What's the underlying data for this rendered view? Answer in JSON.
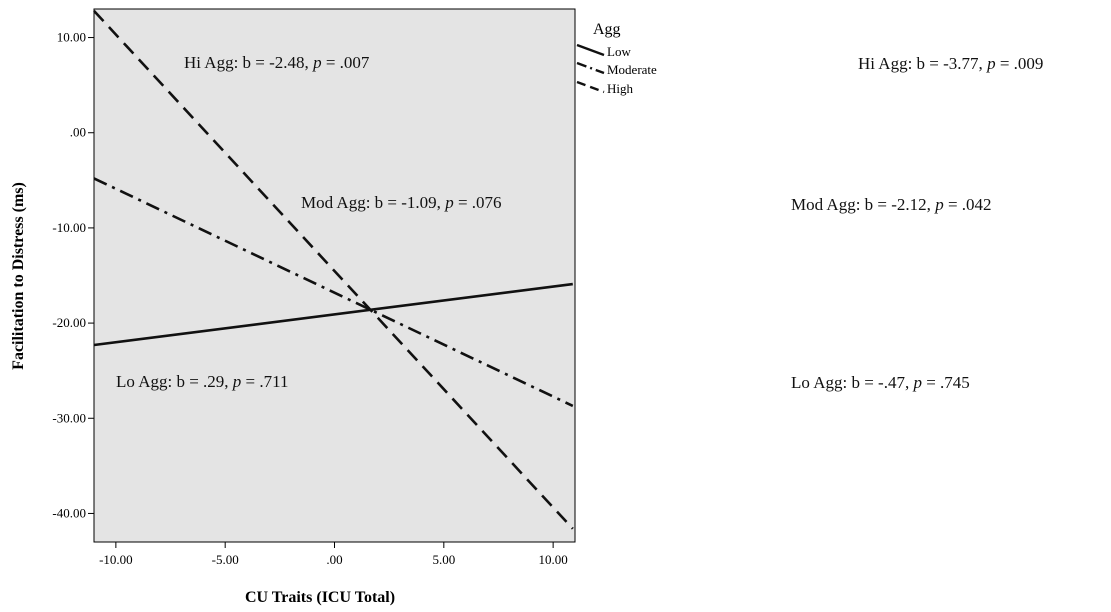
{
  "chart_data": {
    "type": "line",
    "xlabel": "CU Traits (ICU Total)",
    "ylabel": "Facilitation to Distress (ms)",
    "xlim": [
      -11.0,
      11.0
    ],
    "ylim": [
      -43.0,
      13.0
    ],
    "x_ticks": [
      -10,
      -5,
      0,
      5,
      10
    ],
    "x_tick_labels": [
      "-10.00",
      "-5.00",
      ".00",
      "5.00",
      "10.00"
    ],
    "y_ticks": [
      10,
      0,
      -10,
      -20,
      -30,
      -40
    ],
    "y_tick_labels": [
      "10.00",
      ".00",
      "-10.00",
      "-20.00",
      "-30.00",
      "-40.00"
    ],
    "grid": false,
    "legend": {
      "title": "Agg",
      "placement": "right"
    },
    "series": [
      {
        "name": "Low",
        "style": "solid",
        "x": [
          -11.0,
          10.9
        ],
        "y": [
          -22.3,
          -15.9
        ]
      },
      {
        "name": "Moderate",
        "style": "dash-dot",
        "x": [
          -11.0,
          10.9
        ],
        "y": [
          -4.8,
          -28.7
        ]
      },
      {
        "name": "High",
        "style": "dashed",
        "x": [
          -11.0,
          10.9
        ],
        "y": [
          12.8,
          -41.6
        ]
      }
    ],
    "annotations_inside": [
      {
        "label": "Hi Agg: b = -2.48, ",
        "p_label": "p",
        "p_value": " = .007"
      },
      {
        "label": "Mod Agg: b = -1.09, ",
        "p_label": "p",
        "p_value": " = .076"
      },
      {
        "label": "Lo Agg: b = .29, ",
        "p_label": "p",
        "p_value": " = .711"
      }
    ],
    "annotations_outside": [
      {
        "label": "Hi Agg: b = -3.77, ",
        "p_label": "p",
        "p_value": " = .009"
      },
      {
        "label": "Mod Agg: b = -2.12, ",
        "p_label": "p",
        "p_value": " = .042"
      },
      {
        "label": "Lo Agg: b = -.47, ",
        "p_label": "p",
        "p_value": " = .745"
      }
    ]
  },
  "colors": {
    "plot_background": "#e4e4e4",
    "line": "#111111",
    "axis": "#000000"
  }
}
